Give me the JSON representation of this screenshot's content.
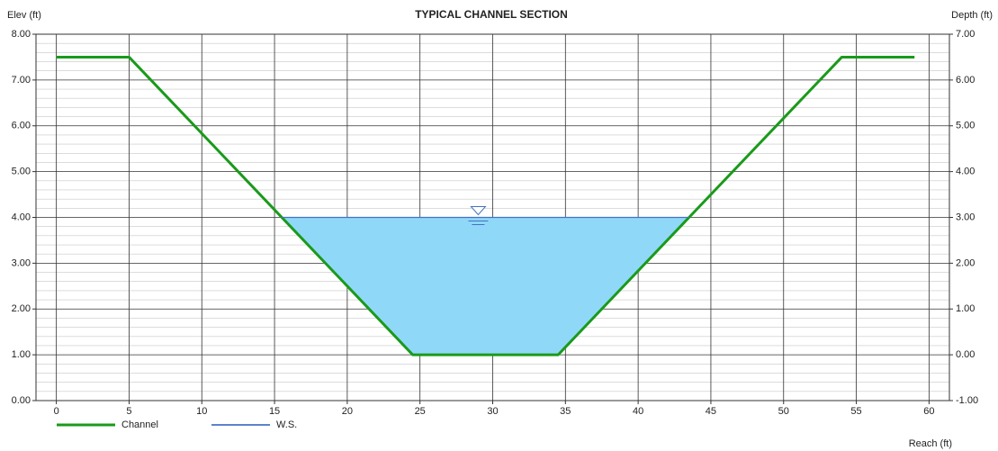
{
  "chart_data": {
    "type": "line",
    "title": "TYPICAL CHANNEL SECTION",
    "y_label": "Elev (ft)",
    "y2_label": "Depth (ft)",
    "x_label": "Reach (ft)",
    "xlim": [
      -1.4,
      61.4
    ],
    "xticks": [
      0,
      5,
      10,
      15,
      20,
      25,
      30,
      35,
      40,
      45,
      50,
      55,
      60
    ],
    "ylim": [
      0,
      8
    ],
    "yticks": [
      {
        "value": 0,
        "label": "0.00"
      },
      {
        "value": 1,
        "label": "1.00"
      },
      {
        "value": 2,
        "label": "2.00"
      },
      {
        "value": 3,
        "label": "3.00"
      },
      {
        "value": 4,
        "label": "4.00"
      },
      {
        "value": 5,
        "label": "5.00"
      },
      {
        "value": 6,
        "label": "6.00"
      },
      {
        "value": 7,
        "label": "7.00"
      },
      {
        "value": 8,
        "label": "8.00"
      }
    ],
    "y2lim": [
      -1,
      7
    ],
    "y2ticks": [
      {
        "value": -1,
        "label": "-1.00"
      },
      {
        "value": 0,
        "label": "0.00"
      },
      {
        "value": 1,
        "label": "1.00"
      },
      {
        "value": 2,
        "label": "2.00"
      },
      {
        "value": 3,
        "label": "3.00"
      },
      {
        "value": 4,
        "label": "4.00"
      },
      {
        "value": 5,
        "label": "5.00"
      },
      {
        "value": 6,
        "label": "6.00"
      },
      {
        "value": 7,
        "label": "7.00"
      }
    ],
    "grid": true,
    "water_fill": "#90d8f8",
    "series": [
      {
        "name": "Channel",
        "color": "#1a9a1a",
        "x": [
          0,
          5,
          24.5,
          34.5,
          54,
          59
        ],
        "values": [
          7.5,
          7.5,
          1,
          1,
          7.5,
          7.5
        ]
      },
      {
        "name": "W.S.",
        "color": "#4472c4",
        "x": [
          15.5,
          43.5
        ],
        "values": [
          4,
          4
        ]
      }
    ]
  }
}
